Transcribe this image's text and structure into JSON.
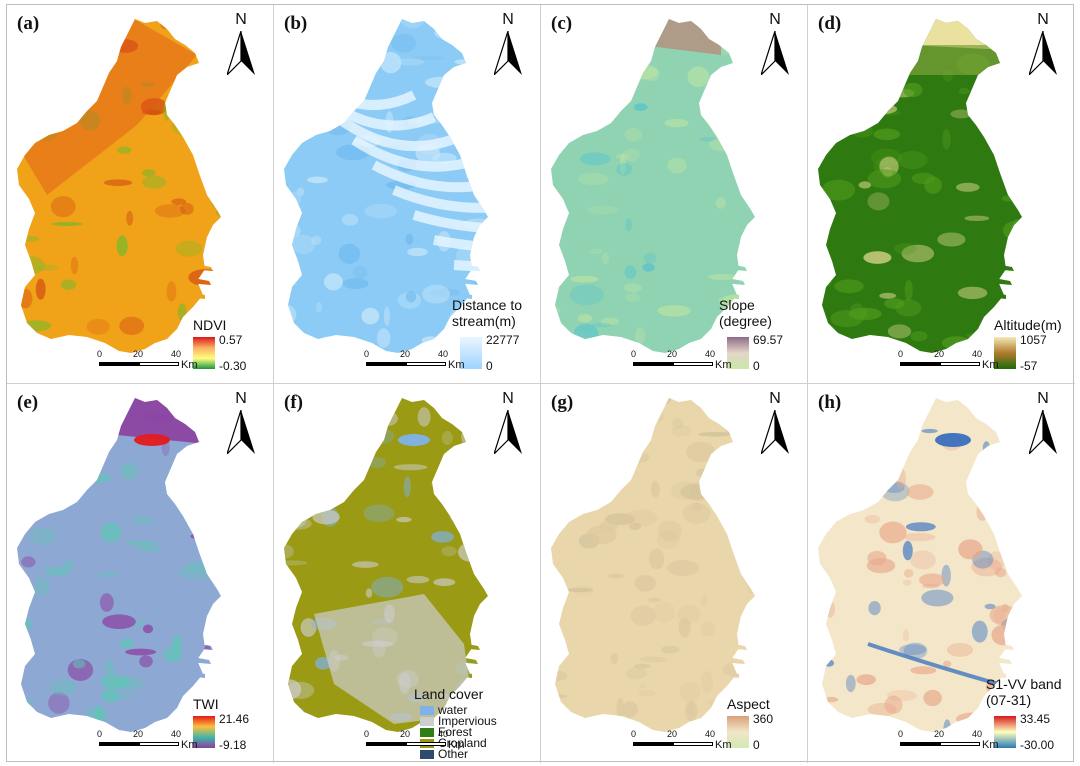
{
  "panels": [
    {
      "letter": "(a)",
      "north": "N",
      "legend": {
        "title": "NDVI",
        "max": "0.57",
        "min": "-0.30",
        "ramp": [
          "#d7191c",
          "#fdae61",
          "#ffff80",
          "#1a9641"
        ]
      }
    },
    {
      "letter": "(b)",
      "north": "N",
      "legend": {
        "title": "Distance to stream(m)",
        "max": "22777",
        "min": "0",
        "ramp": [
          "#eaf6ff",
          "#9fd3ff"
        ]
      }
    },
    {
      "letter": "(c)",
      "north": "N",
      "legend": {
        "title": "Slope (degree)",
        "max": "69.57",
        "min": "0",
        "ramp": [
          "#8e6b87",
          "#e5d6c9",
          "#c9e8a6"
        ]
      }
    },
    {
      "letter": "(d)",
      "north": "N",
      "legend": {
        "title": "Altitude(m)",
        "max": "1057",
        "min": "-57",
        "ramp": [
          "#f3e9b8",
          "#b07a2c",
          "#1f6b0a"
        ]
      }
    },
    {
      "letter": "(e)",
      "north": "N",
      "legend": {
        "title": "TWI",
        "max": "21.46",
        "min": "-9.18",
        "ramp": [
          "#e31a1c",
          "#fdbf3c",
          "#41b6a6",
          "#8c3fa0"
        ]
      }
    },
    {
      "letter": "(f)",
      "north": "N",
      "legend": {
        "title": "Land cover",
        "classes": [
          {
            "label": "water",
            "color": "#7fb2ea"
          },
          {
            "label": "Impervious",
            "color": "#cdcdcd"
          },
          {
            "label": "Forest",
            "color": "#2f7d16"
          },
          {
            "label": "Cropland",
            "color": "#9a9a14"
          },
          {
            "label": "Other",
            "color": "#2e4a6e"
          }
        ]
      }
    },
    {
      "letter": "(g)",
      "north": "N",
      "legend": {
        "title": "Aspect",
        "max": "360",
        "min": "0",
        "ramp": [
          "#d9a07a",
          "#f1e6c7",
          "#d3e8b4"
        ]
      }
    },
    {
      "letter": "(h)",
      "north": "N",
      "legend": {
        "title": "S1-VV band (07-31)",
        "max": "33.45",
        "min": "-30.00",
        "ramp": [
          "#d7191c",
          "#ffffbf",
          "#2c7bb6"
        ]
      }
    }
  ],
  "scale": {
    "ticks": [
      "0",
      "20",
      "40"
    ],
    "unit": "Km"
  },
  "map_fills": {
    "a": {
      "base": "#f0a318",
      "accent": "#7bb82a",
      "ink": "#d24b12"
    },
    "b": {
      "base": "#8ccbf5",
      "accent": "#c9e8fb",
      "ink": "#6eb8ef"
    },
    "c": {
      "base": "#8fd3b3",
      "accent": "#b9e2a4",
      "ink": "#4fc0cf"
    },
    "d": {
      "base": "#2f7a10",
      "accent": "#4f9a1c",
      "ink": "#f3e3a0"
    },
    "e": {
      "base": "#8da9d3",
      "accent": "#5fc6b5",
      "ink": "#8c3fa0"
    },
    "f": {
      "base": "#9a9a14",
      "accent": "#cdcdcd",
      "ink": "#7fb2ea"
    },
    "g": {
      "base": "#e9d6ab",
      "accent": "#ddc89f",
      "ink": "#cfbf99"
    },
    "h": {
      "base": "#f4e6c8",
      "accent": "#e8a98c",
      "ink": "#4a7fc4"
    }
  }
}
